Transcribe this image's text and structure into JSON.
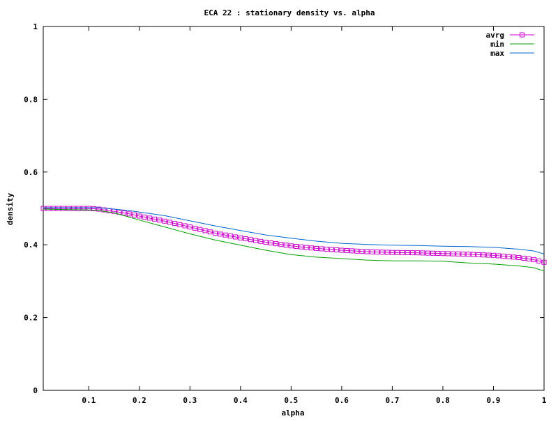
{
  "chart_data": {
    "type": "line",
    "title": "ECA 22 : stationary density vs. alpha",
    "xlabel": "alpha",
    "ylabel": "density",
    "xlim": [
      0.01,
      1.0
    ],
    "ylim": [
      0,
      1
    ],
    "xticks": [
      "0.1",
      "0.2",
      "0.3",
      "0.4",
      "0.5",
      "0.6",
      "0.7",
      "0.8",
      "0.9",
      "1"
    ],
    "yticks": [
      "0",
      "0.2",
      "0.4",
      "0.6",
      "0.8",
      "1"
    ],
    "legend_position": "top-right",
    "grid": false,
    "series": [
      {
        "name": "avrg",
        "color": "#cc00cc",
        "marker": "square",
        "x": [
          0.01,
          0.05,
          0.1,
          0.12,
          0.15,
          0.18,
          0.2,
          0.25,
          0.3,
          0.35,
          0.4,
          0.45,
          0.5,
          0.55,
          0.6,
          0.65,
          0.7,
          0.75,
          0.8,
          0.85,
          0.9,
          0.95,
          0.98,
          1.0
        ],
        "values": [
          0.5,
          0.5,
          0.5,
          0.498,
          0.492,
          0.485,
          0.479,
          0.465,
          0.449,
          0.432,
          0.419,
          0.407,
          0.397,
          0.39,
          0.385,
          0.381,
          0.379,
          0.378,
          0.376,
          0.374,
          0.371,
          0.365,
          0.359,
          0.352
        ]
      },
      {
        "name": "min",
        "color": "#00a000",
        "x": [
          0.01,
          0.05,
          0.1,
          0.12,
          0.15,
          0.18,
          0.2,
          0.25,
          0.3,
          0.35,
          0.4,
          0.45,
          0.5,
          0.55,
          0.6,
          0.65,
          0.7,
          0.75,
          0.8,
          0.85,
          0.9,
          0.95,
          0.98,
          1.0
        ],
        "values": [
          0.498,
          0.497,
          0.496,
          0.494,
          0.488,
          0.476,
          0.468,
          0.449,
          0.43,
          0.413,
          0.399,
          0.385,
          0.373,
          0.366,
          0.362,
          0.358,
          0.356,
          0.356,
          0.355,
          0.35,
          0.347,
          0.342,
          0.337,
          0.328
        ]
      },
      {
        "name": "max",
        "color": "#0066cc",
        "x": [
          0.01,
          0.05,
          0.1,
          0.12,
          0.15,
          0.18,
          0.2,
          0.25,
          0.3,
          0.35,
          0.4,
          0.45,
          0.5,
          0.55,
          0.6,
          0.65,
          0.7,
          0.75,
          0.8,
          0.85,
          0.9,
          0.95,
          0.98,
          1.0
        ],
        "values": [
          0.502,
          0.502,
          0.502,
          0.502,
          0.498,
          0.494,
          0.49,
          0.48,
          0.466,
          0.452,
          0.439,
          0.427,
          0.418,
          0.41,
          0.404,
          0.401,
          0.399,
          0.398,
          0.396,
          0.395,
          0.393,
          0.388,
          0.383,
          0.375
        ]
      }
    ]
  }
}
